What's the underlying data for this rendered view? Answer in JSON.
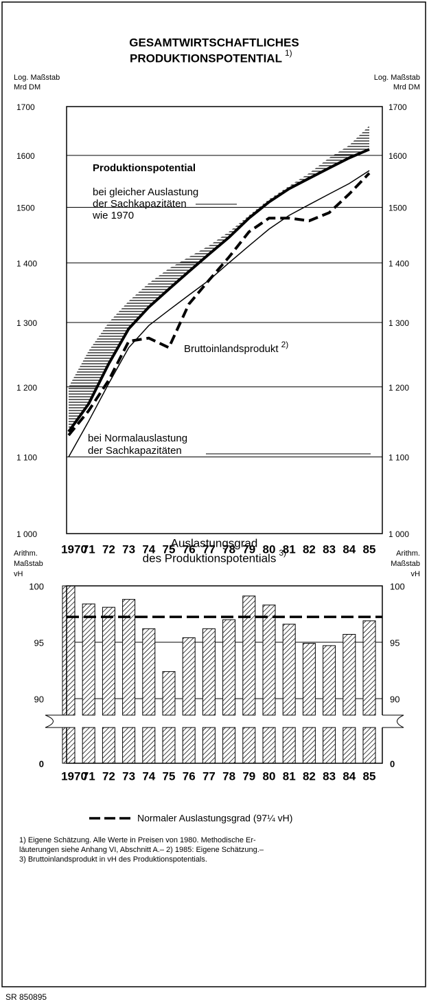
{
  "chart_data": [
    {
      "type": "line",
      "title": [
        "GESAMTWIRTSCHAFTLICHES",
        "PRODUKTIONSPOTENTIAL"
      ],
      "title_note": "1)",
      "y_label": [
        "Log. Maßstab",
        "Mrd DM"
      ],
      "log_scale": true,
      "grid": true,
      "categories": [
        "1970",
        "71",
        "72",
        "73",
        "74",
        "75",
        "76",
        "77",
        "78",
        "79",
        "80",
        "81",
        "82",
        "83",
        "84",
        "85"
      ],
      "ylim": [
        1000,
        1700
      ],
      "yticks": [
        {
          "value": 1000,
          "label": "1 000"
        },
        {
          "value": 1100,
          "label": "1 100"
        },
        {
          "value": 1200,
          "label": "1 200"
        },
        {
          "value": 1300,
          "label": "1 300"
        },
        {
          "value": 1400,
          "label": "1 400"
        },
        1500,
        1600,
        1700
      ],
      "series": [
        {
          "color": "#000",
          "style": "thick",
          "values": [
            1135,
            1175,
            1235,
            1290,
            1325,
            1355,
            1385,
            1415,
            1445,
            1480,
            1510,
            1535,
            1555,
            1575,
            1595,
            1612
          ]
        },
        {
          "color": "#000",
          "style": "thin",
          "values": [
            1100,
            1150,
            1205,
            1260,
            1295,
            1320,
            1345,
            1370,
            1400,
            1430,
            1460,
            1485,
            1505,
            1525,
            1545,
            1570
          ]
        },
        {
          "color": "#000",
          "style": "dashed",
          "values": [
            1130,
            1165,
            1210,
            1270,
            1275,
            1260,
            1330,
            1370,
            1410,
            1455,
            1480,
            1480,
            1475,
            1490,
            1525,
            1565
          ]
        }
      ],
      "band": {
        "upper": [
          1200,
          1255,
          1300,
          1335,
          1365,
          1390,
          1410,
          1430,
          1455,
          1485,
          1515,
          1540,
          1565,
          1595,
          1620,
          1660
        ]
      },
      "annotations": [
        "Produktionspotential",
        "bei gleicher Auslastung",
        "der Sachkapazitäten",
        "wie 1970",
        "Bruttoinlandsprodukt",
        "bei Normalauslastung",
        "der Sachkapazitäten"
      ],
      "annotation_note": "2)"
    },
    {
      "type": "bar",
      "title": [
        "Auslastungsgrad",
        "des Produktionspotentials"
      ],
      "title_note": "3)",
      "y_label": [
        "Arithm.",
        "Maßstab",
        "vH"
      ],
      "grid": true,
      "categories": [
        "1970",
        "71",
        "72",
        "73",
        "74",
        "75",
        "76",
        "77",
        "78",
        "79",
        "80",
        "81",
        "82",
        "83",
        "84",
        "85"
      ],
      "values": [
        100,
        98.4,
        98.1,
        98.8,
        96.2,
        92.4,
        95.4,
        96.2,
        97.0,
        99.1,
        98.3,
        96.6,
        94.9,
        94.7,
        95.7,
        96.9
      ],
      "ylim": [
        0,
        100
      ],
      "yticks": [
        0,
        90,
        95,
        100
      ],
      "axis_break": [
        0,
        88
      ],
      "reference": {
        "value": 97.25,
        "label": "Normaler Auslastungsgrad (97¼ vH)"
      }
    }
  ],
  "footnotes": [
    "1) Eigene Schätzung. Alle Werte in Preisen von 1980. Methodische Er-",
    "läuterungen siehe Anhang VI, Abschnitt A.– 2) 1985: Eigene Schätzung.–",
    "3) Bruttoinlandsprodukt in vH des Produktionspotentials."
  ],
  "source": "SR 850895"
}
